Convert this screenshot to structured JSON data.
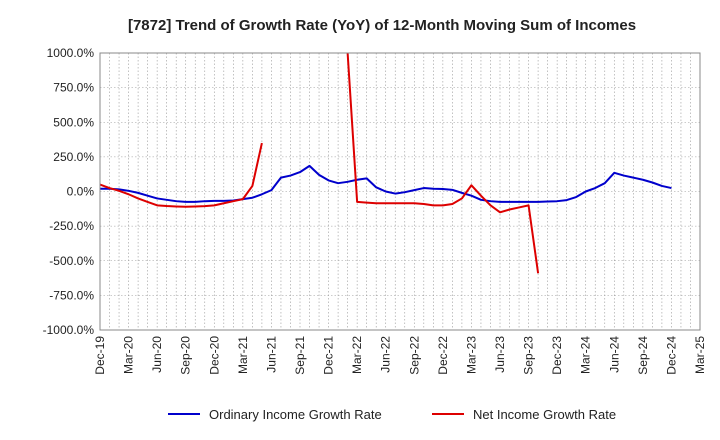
{
  "chart_data": {
    "type": "line",
    "title": "[7872]  Trend of Growth Rate (YoY) of 12-Month Moving Sum of Incomes",
    "xlabel": "",
    "ylabel": "",
    "ylim": [
      -1000,
      1000
    ],
    "y_ticks": [
      1000,
      750,
      500,
      250,
      0,
      -250,
      -500,
      -750,
      -1000
    ],
    "y_tick_labels": [
      "1000.0%",
      "750.0%",
      "500.0%",
      "250.0%",
      "0.0%",
      "-250.0%",
      "-500.0%",
      "-750.0%",
      "-1000.0%"
    ],
    "x_tick_labels": [
      "Dec-19",
      "Mar-20",
      "Jun-20",
      "Sep-20",
      "Dec-20",
      "Mar-21",
      "Jun-21",
      "Sep-21",
      "Dec-21",
      "Mar-22",
      "Jun-22",
      "Sep-22",
      "Dec-22",
      "Mar-23",
      "Jun-23",
      "Sep-23",
      "Dec-23",
      "Mar-24",
      "Jun-24",
      "Sep-24",
      "Dec-24",
      "Mar-25"
    ],
    "x_start": "Dec-19",
    "grid": true,
    "legend_position": "bottom",
    "series": [
      {
        "name": "Ordinary Income Growth Rate",
        "color": "#0000cc",
        "x": [
          "Dec-19",
          "Jan-20",
          "Feb-20",
          "Mar-20",
          "Apr-20",
          "May-20",
          "Jun-20",
          "Jul-20",
          "Aug-20",
          "Sep-20",
          "Oct-20",
          "Nov-20",
          "Dec-20",
          "Jan-21",
          "Feb-21",
          "Mar-21",
          "Apr-21",
          "May-21",
          "Jun-21",
          "Jul-21",
          "Aug-21",
          "Sep-21",
          "Oct-21",
          "Nov-21",
          "Dec-21",
          "Jan-22",
          "Feb-22",
          "Mar-22",
          "Apr-22",
          "May-22",
          "Jun-22",
          "Jul-22",
          "Aug-22",
          "Sep-22",
          "Oct-22",
          "Nov-22",
          "Dec-22",
          "Jan-23",
          "Feb-23",
          "Mar-23",
          "Apr-23",
          "May-23",
          "Jun-23",
          "Jul-23",
          "Aug-23",
          "Sep-23",
          "Oct-23",
          "Nov-23",
          "Dec-23",
          "Jan-24",
          "Feb-24",
          "Mar-24",
          "Apr-24",
          "May-24",
          "Jun-24",
          "Jul-24",
          "Aug-24",
          "Sep-24",
          "Oct-24",
          "Nov-24",
          "Dec-24"
        ],
        "values": [
          20,
          20,
          15,
          5,
          -10,
          -30,
          -50,
          -60,
          -70,
          -75,
          -75,
          -70,
          -68,
          -68,
          -65,
          -55,
          -45,
          -20,
          10,
          100,
          115,
          140,
          185,
          120,
          80,
          60,
          70,
          85,
          95,
          30,
          0,
          -15,
          -5,
          10,
          25,
          20,
          18,
          12,
          -10,
          -30,
          -60,
          -70,
          -75,
          -75,
          -75,
          -75,
          -75,
          -72,
          -70,
          -62,
          -40,
          0,
          25,
          60,
          135,
          115,
          100,
          85,
          65,
          40,
          25
        ]
      },
      {
        "name": "Net Income Growth Rate",
        "color": "#dd0000",
        "x": [
          "Dec-19",
          "Jan-20",
          "Feb-20",
          "Mar-20",
          "Apr-20",
          "May-20",
          "Jun-20",
          "Jul-20",
          "Aug-20",
          "Sep-20",
          "Oct-20",
          "Nov-20",
          "Dec-20",
          "Jan-21",
          "Feb-21",
          "Mar-21",
          "Apr-21",
          "May-21",
          "Jun-21",
          "Feb-22",
          "Mar-22",
          "Apr-22",
          "May-22",
          "Jun-22",
          "Jul-22",
          "Aug-22",
          "Sep-22",
          "Oct-22",
          "Nov-22",
          "Dec-22",
          "Jan-23",
          "Feb-23",
          "Mar-23",
          "Apr-23",
          "May-23",
          "Jun-23",
          "Jul-23",
          "Aug-23",
          "Sep-23",
          "Oct-23"
        ],
        "values": [
          50,
          25,
          5,
          -20,
          -50,
          -75,
          -100,
          -105,
          -108,
          -110,
          -108,
          -106,
          -100,
          -85,
          -70,
          -55,
          40,
          350,
          null,
          1000,
          -75,
          -80,
          -85,
          -85,
          -85,
          -85,
          -85,
          -90,
          -100,
          -100,
          -90,
          -50,
          45,
          -30,
          -100,
          -150,
          -130,
          -115,
          -100,
          -590
        ]
      }
    ]
  }
}
